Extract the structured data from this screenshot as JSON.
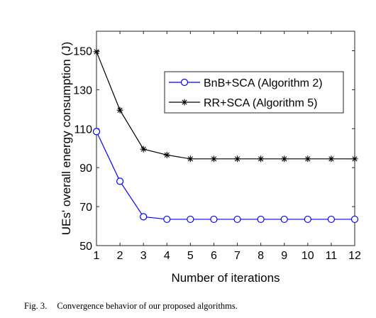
{
  "caption": {
    "figure_number": "Fig. 3.",
    "text": "Convergence behavior of our proposed algorithms."
  },
  "chart_data": {
    "type": "line",
    "title": "",
    "xlabel": "Number of iterations",
    "ylabel": "UEs' overall energy consumption (J)",
    "x": [
      1,
      2,
      3,
      4,
      5,
      6,
      7,
      8,
      9,
      10,
      11,
      12
    ],
    "xlim": [
      1,
      12
    ],
    "ylim": [
      50,
      160
    ],
    "xticks": [
      1,
      2,
      3,
      4,
      5,
      6,
      7,
      8,
      9,
      10,
      11,
      12
    ],
    "yticks": [
      50,
      70,
      90,
      110,
      130,
      150
    ],
    "grid": false,
    "legend_position": "upper-right",
    "series": [
      {
        "name": "BnB+SCA (Algorithm 2)",
        "color": "#0000FF",
        "marker": "circle",
        "values": [
          108.5,
          83,
          64.8,
          63.5,
          63.5,
          63.5,
          63.5,
          63.5,
          63.5,
          63.5,
          63.5,
          63.5
        ]
      },
      {
        "name": "RR+SCA (Algorithm 5)",
        "color": "#000000",
        "marker": "star",
        "values": [
          149.5,
          119.5,
          99.5,
          96.5,
          94.5,
          94.5,
          94.5,
          94.5,
          94.5,
          94.5,
          94.5,
          94.5
        ]
      }
    ]
  }
}
